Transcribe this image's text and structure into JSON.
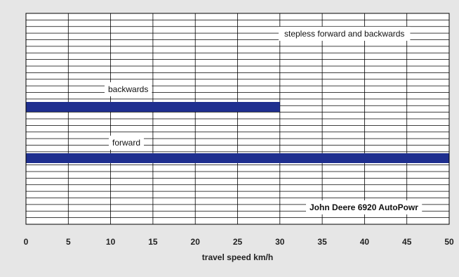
{
  "chart_data": {
    "type": "bar",
    "orientation": "horizontal",
    "title": "",
    "xlabel": "travel speed km/h",
    "ylabel": "",
    "xlim": [
      0,
      50
    ],
    "x_ticks": [
      0,
      5,
      10,
      15,
      20,
      25,
      30,
      35,
      40,
      45,
      50
    ],
    "grid": true,
    "bar_color": "#1f2f8f",
    "series": [
      {
        "name": "backwards",
        "range": [
          0,
          30
        ]
      },
      {
        "name": "forward",
        "range": [
          0,
          50
        ]
      }
    ],
    "annotations": [
      {
        "text": "stepless forward and backwards",
        "bold": false
      },
      {
        "text": "John Deere 6920 AutoPowr",
        "bold": true
      }
    ]
  }
}
